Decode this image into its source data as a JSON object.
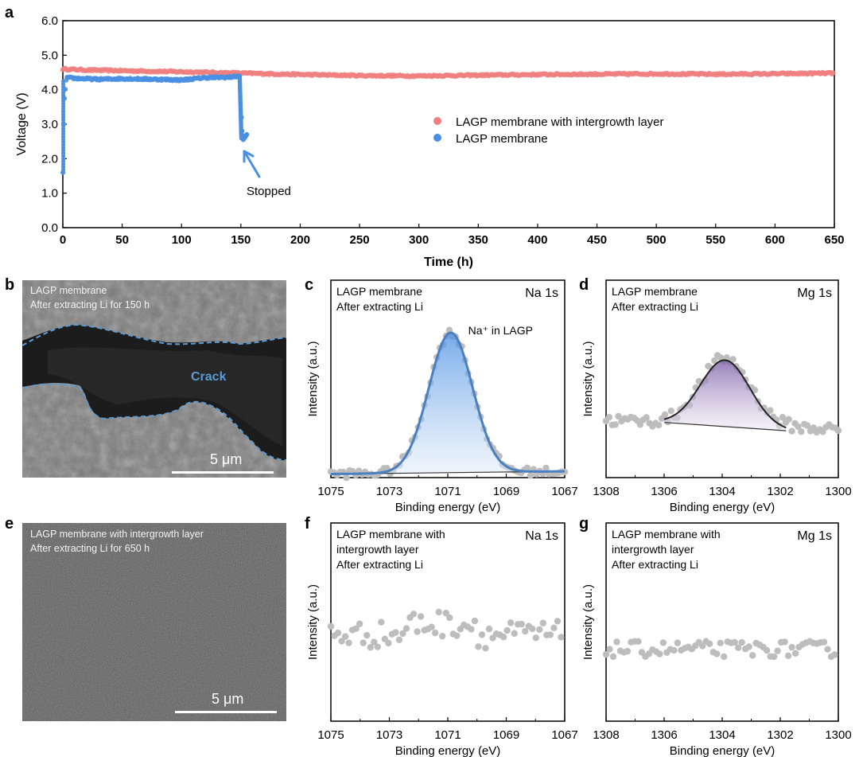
{
  "panel_labels": {
    "a": "a",
    "b": "b",
    "c": "c",
    "d": "d",
    "e": "e",
    "f": "f",
    "g": "g"
  },
  "colors": {
    "intergrowth": "#f08080",
    "membrane": "#4a90e2",
    "xps_points": "#bdbdbd",
    "na_fit": "#4a7fc1",
    "mg_fit": "#7b5ea7",
    "sem_b_bg": "#6b6b6b",
    "sem_e_bg": "#5a5a5a"
  },
  "panel_b": {
    "line1": "LAGP membrane",
    "line2": "After extracting Li for 150 h",
    "crack_label": "Crack",
    "scale_label": "5 μm"
  },
  "panel_e": {
    "line1": "LAGP membrane with intergrowth layer",
    "line2": "After extracting Li for 650 h",
    "scale_label": "5 μm"
  },
  "chart_data": [
    {
      "id": "a",
      "type": "scatter",
      "title": "",
      "xlabel": "Time (h)",
      "ylabel": "Voltage (V)",
      "xlim": [
        0,
        650
      ],
      "ylim": [
        0,
        6
      ],
      "xticks": [
        0,
        50,
        100,
        150,
        200,
        250,
        300,
        350,
        400,
        450,
        500,
        550,
        600,
        650
      ],
      "yticks": [
        "0.0",
        "1.0",
        "2.0",
        "3.0",
        "4.0",
        "5.0",
        "6.0"
      ],
      "legend_position": "right",
      "annotation": "Stopped",
      "series": [
        {
          "name": "LAGP membrane with intergrowth layer",
          "x": [
            0,
            20,
            50,
            100,
            150,
            200,
            250,
            300,
            350,
            400,
            450,
            500,
            550,
            600,
            650
          ],
          "y": [
            4.6,
            4.57,
            4.55,
            4.52,
            4.48,
            4.44,
            4.41,
            4.4,
            4.42,
            4.44,
            4.45,
            4.46,
            4.45,
            4.46,
            4.48
          ]
        },
        {
          "name": "LAGP membrane",
          "x": [
            0,
            1,
            3,
            10,
            30,
            50,
            80,
            100,
            120,
            140,
            145,
            148,
            149,
            150,
            151,
            152,
            153,
            155
          ],
          "y": [
            1.6,
            3.6,
            4.35,
            4.33,
            4.3,
            4.32,
            4.3,
            4.28,
            4.35,
            4.36,
            4.38,
            4.4,
            4.2,
            3.6,
            2.8,
            2.55,
            2.6,
            2.7
          ]
        }
      ]
    },
    {
      "id": "c",
      "type": "scatter",
      "title": "Na 1s",
      "label_lines": [
        "LAGP membrane",
        "After extracting Li"
      ],
      "annotation": "Na⁺ in LAGP",
      "xlabel": "Binding energy (eV)",
      "ylabel": "Intensity (a.u.)",
      "xlim": [
        1075,
        1067
      ],
      "xticks": [
        1075,
        1073,
        1071,
        1069,
        1067
      ],
      "ylim": [
        0,
        1.1
      ],
      "peak": {
        "center": 1070.9,
        "height": 0.78,
        "width": 0.75,
        "base_start": 0.02,
        "base_end": 0.035
      },
      "noise": 0.02,
      "fill": true
    },
    {
      "id": "d",
      "type": "scatter",
      "title": "Mg 1s",
      "label_lines": [
        "LAGP membrane",
        "After extracting Li"
      ],
      "xlabel": "Binding energy (eV)",
      "ylabel": "Intensity (a.u.)",
      "xlim": [
        1308,
        1300
      ],
      "xticks": [
        1308,
        1306,
        1304,
        1302,
        1300
      ],
      "ylim": [
        0,
        1.1
      ],
      "peak": {
        "center": 1303.9,
        "height": 0.37,
        "width": 0.85,
        "base_start": 0.32,
        "base_end": 0.27
      },
      "fit_range": [
        1306.0,
        1301.8
      ],
      "noise": 0.03,
      "fill": true
    },
    {
      "id": "f",
      "type": "scatter",
      "title": "Na 1s",
      "label_lines": [
        "LAGP membrane with",
        "intergrowth layer",
        "After extracting Li"
      ],
      "xlabel": "Binding energy (eV)",
      "ylabel": "Intensity (a.u.)",
      "xlim": [
        1075,
        1067
      ],
      "xticks": [
        1075,
        1073,
        1071,
        1069,
        1067
      ],
      "ylim": [
        0,
        1.1
      ],
      "baseline": 0.48,
      "noise": 0.06,
      "fill": false
    },
    {
      "id": "g",
      "type": "scatter",
      "title": "Mg 1s",
      "label_lines": [
        "LAGP membrane with",
        "intergrowth layer",
        "After extracting Li"
      ],
      "xlabel": "Binding energy (eV)",
      "ylabel": "Intensity (a.u.)",
      "xlim": [
        1308,
        1300
      ],
      "xticks": [
        1308,
        1306,
        1304,
        1302,
        1300
      ],
      "ylim": [
        0,
        1.1
      ],
      "baseline": 0.4,
      "noise": 0.035,
      "fill": false
    }
  ]
}
